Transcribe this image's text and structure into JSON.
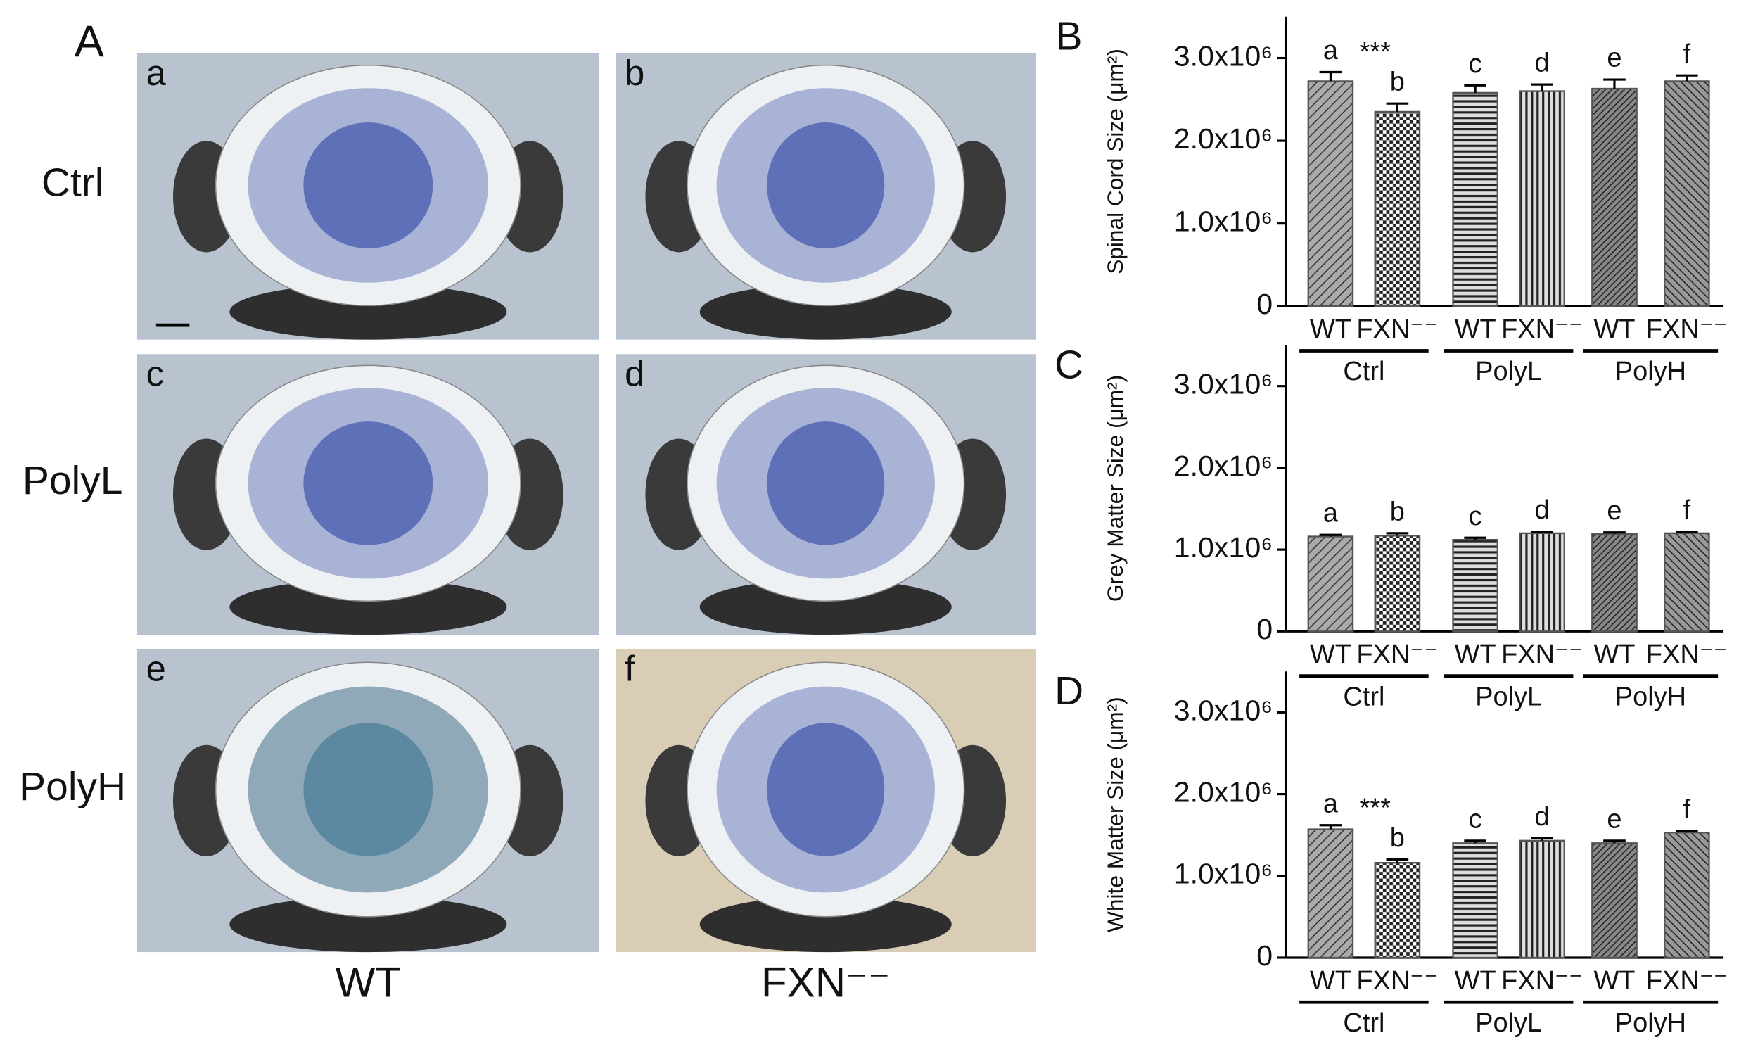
{
  "panel_a": {
    "label": "A",
    "images": [
      "a",
      "b",
      "c",
      "d",
      "e",
      "f"
    ],
    "rows": [
      "Ctrl",
      "PolyL",
      "PolyH"
    ],
    "columns": [
      "WT",
      "FXN⁻⁻"
    ]
  },
  "chart_data": [
    {
      "type": "bar",
      "panel": "B",
      "y_label": "Spinal Cord Size (μm²)",
      "categories": [
        "WT",
        "FXN⁻⁻",
        "WT",
        "FXN⁻⁻",
        "WT",
        "FXN⁻⁻"
      ],
      "groups": [
        "Ctrl",
        "PolyL",
        "PolyH"
      ],
      "values": [
        2720000,
        2350000,
        2580000,
        2600000,
        2630000,
        2720000
      ],
      "errors": [
        110000,
        100000,
        90000,
        80000,
        110000,
        70000
      ],
      "bar_labels": [
        "a",
        "b",
        "c",
        "d",
        "e",
        "f"
      ],
      "significance": "***",
      "patterns": [
        "diag",
        "checker",
        "horiz",
        "vert",
        "diag-dense",
        "back-diag"
      ],
      "color": "#555555",
      "ylim": [
        0,
        3500000
      ],
      "yticks": [
        0,
        {
          "value": 1000000,
          "label": "1.0x10⁶"
        },
        {
          "value": 2000000,
          "label": "2.0x10⁶"
        },
        {
          "value": 3000000,
          "label": "3.0x10⁶"
        }
      ]
    },
    {
      "type": "bar",
      "panel": "C",
      "y_label": "Grey Matter Size (μm²)",
      "categories": [
        "WT",
        "FXN⁻⁻",
        "WT",
        "FXN⁻⁻",
        "WT",
        "FXN⁻⁻"
      ],
      "groups": [
        "Ctrl",
        "PolyL",
        "PolyH"
      ],
      "values": [
        1160000,
        1170000,
        1120000,
        1200000,
        1190000,
        1200000
      ],
      "errors": [
        20000,
        30000,
        25000,
        20000,
        20000,
        20000
      ],
      "bar_labels": [
        "a",
        "b",
        "c",
        "d",
        "e",
        "f"
      ],
      "patterns": [
        "diag",
        "checker",
        "horiz",
        "vert",
        "diag-dense",
        "back-diag"
      ],
      "color": "#555555",
      "ylim": [
        0,
        3500000
      ],
      "yticks": [
        0,
        {
          "value": 1000000,
          "label": "1.0x10⁶"
        },
        {
          "value": 2000000,
          "label": "2.0x10⁶"
        },
        {
          "value": 3000000,
          "label": "3.0x10⁶"
        }
      ]
    },
    {
      "type": "bar",
      "panel": "D",
      "y_label": "White Matter Size (μm²)",
      "categories": [
        "WT",
        "FXN⁻⁻",
        "WT",
        "FXN⁻⁻",
        "WT",
        "FXN⁻⁻"
      ],
      "groups": [
        "Ctrl",
        "PolyL",
        "PolyH"
      ],
      "values": [
        1570000,
        1160000,
        1400000,
        1430000,
        1400000,
        1530000
      ],
      "errors": [
        50000,
        40000,
        30000,
        30000,
        30000,
        20000
      ],
      "bar_labels": [
        "a",
        "b",
        "c",
        "d",
        "e",
        "f"
      ],
      "significance": "***",
      "patterns": [
        "diag",
        "checker",
        "horiz",
        "vert",
        "diag-dense",
        "back-diag"
      ],
      "color": "#555555",
      "ylim": [
        0,
        3500000
      ],
      "yticks": [
        0,
        {
          "value": 1000000,
          "label": "1.0x10⁶"
        },
        {
          "value": 2000000,
          "label": "2.0x10⁶"
        },
        {
          "value": 3000000,
          "label": "3.0x10⁶"
        }
      ]
    }
  ]
}
